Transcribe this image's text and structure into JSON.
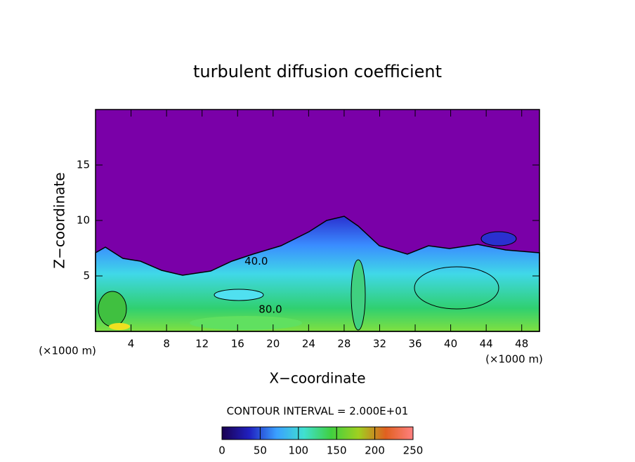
{
  "chart_data": {
    "type": "contour",
    "title": "turbulent diffusion coefficient",
    "xlabel": "X−coordinate",
    "ylabel": "Z−coordinate",
    "x_unit": "(×1000 m)",
    "xlim": [
      0,
      50
    ],
    "ylim": [
      0,
      20
    ],
    "xticks": [
      4,
      8,
      12,
      16,
      20,
      24,
      28,
      32,
      36,
      40,
      44,
      48
    ],
    "yticks": [
      5,
      10,
      15
    ],
    "contour_interval": "CONTOUR INTERVAL = 2.000E+01",
    "contour_labels": [
      {
        "value": 40,
        "label": "40.0",
        "x": 18.1,
        "y": 6.3
      },
      {
        "value": 80,
        "label": "80.0",
        "x": 19.7,
        "y": 1.96
      }
    ],
    "colorbar": {
      "lim": [
        0,
        250
      ],
      "ticks": [
        0,
        50,
        100,
        150,
        200,
        250
      ],
      "colors": [
        "#1a0050",
        "#2020c0",
        "#3aa0ff",
        "#40e0d0",
        "#40d040",
        "#a0d020",
        "#e06020",
        "#ff8080"
      ]
    }
  }
}
